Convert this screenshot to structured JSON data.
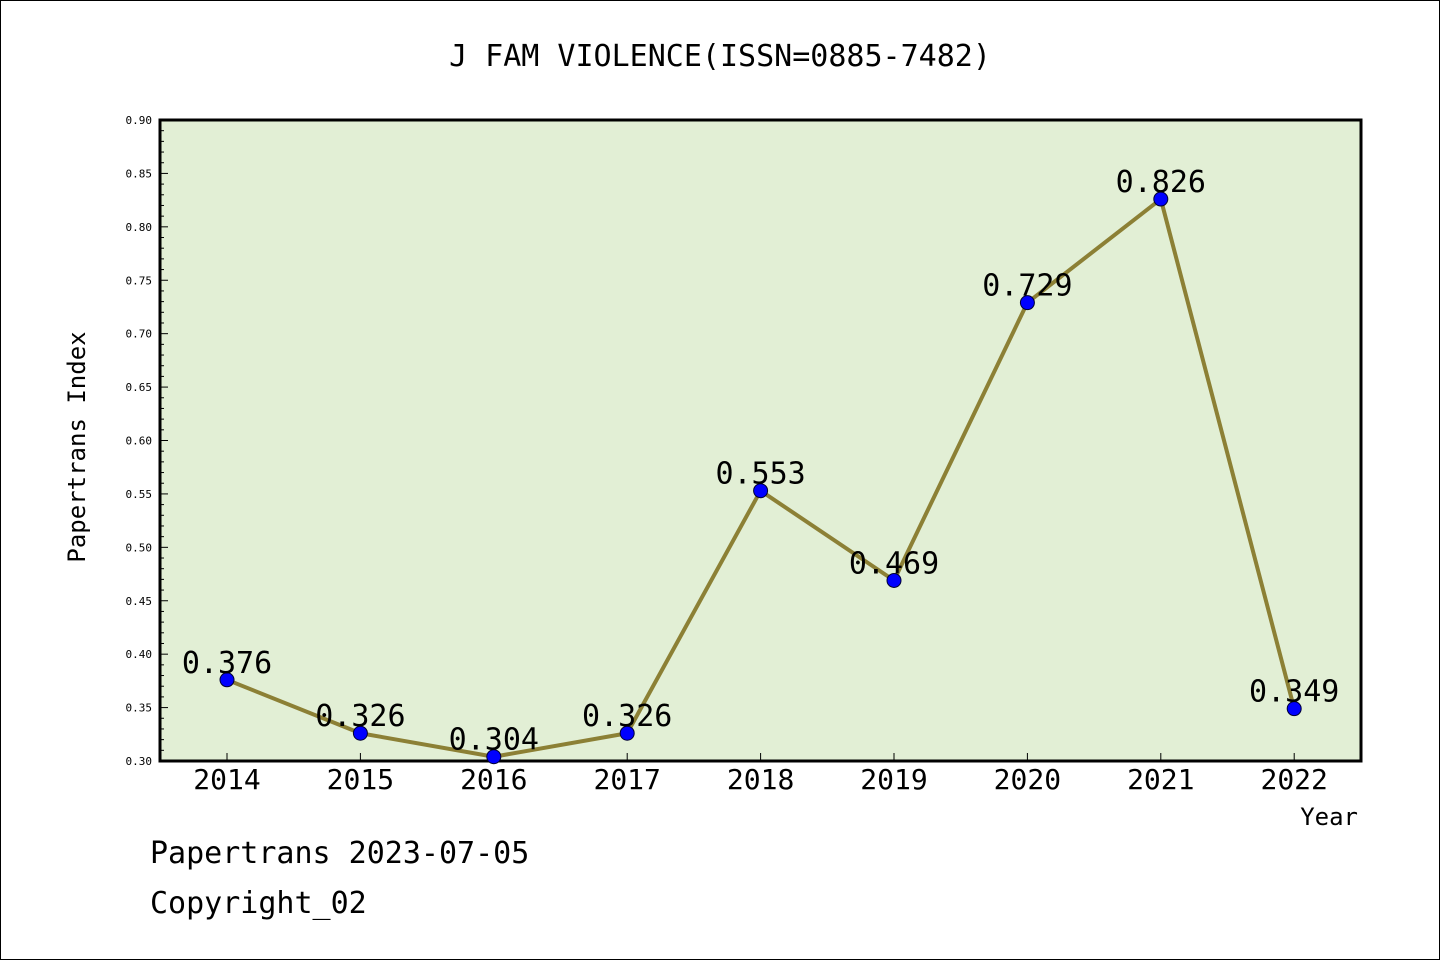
{
  "chart_data": {
    "type": "line",
    "title": "J FAM VIOLENCE(ISSN=0885-7482)",
    "xlabel": "Year",
    "ylabel": "Papertrans Index",
    "categories": [
      "2014",
      "2015",
      "2016",
      "2017",
      "2018",
      "2019",
      "2020",
      "2021",
      "2022"
    ],
    "series": [
      {
        "values": [
          0.376,
          0.326,
          0.304,
          0.326,
          0.553,
          0.469,
          0.729,
          0.826,
          0.349
        ],
        "labels": [
          "0.376",
          "0.326",
          "0.304",
          "0.326",
          "0.553",
          "0.469",
          "0.729",
          "0.826",
          "0.349"
        ]
      }
    ],
    "ylim": [
      0.3,
      0.9
    ],
    "yticks": [
      "0.30",
      "0.35",
      "0.40",
      "0.45",
      "0.50",
      "0.55",
      "0.60",
      "0.65",
      "0.70",
      "0.75",
      "0.80",
      "0.85",
      "0.90"
    ],
    "grid": false,
    "legend": false,
    "colors": {
      "plot_background": "#e2efd5",
      "line": "#8c8035",
      "marker": "#0000ff"
    }
  },
  "footer": {
    "date_text": "Papertrans 2023-07-05",
    "copyright_text": "Copyright_02"
  }
}
